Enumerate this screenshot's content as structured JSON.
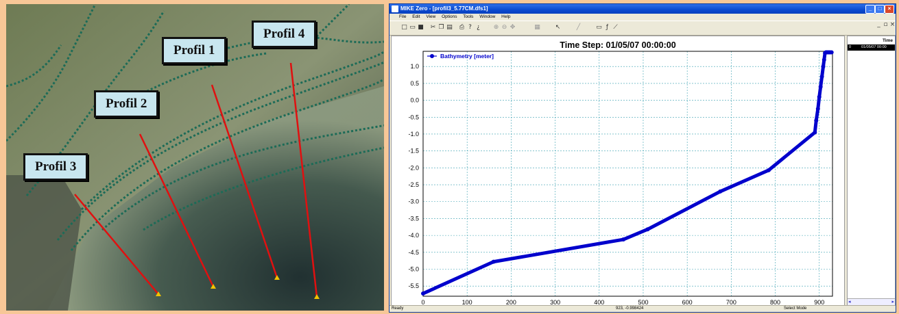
{
  "map": {
    "labels": [
      "Profil 1",
      "Profil 2",
      "Profil 3",
      "Profil 4"
    ]
  },
  "window": {
    "title": "MIKE Zero - [profil3_5.77CM.dfs1]",
    "menu": [
      "File",
      "Edit",
      "View",
      "Options",
      "Tools",
      "Window",
      "Help"
    ],
    "side_header": "Time",
    "side_row_index": "0",
    "side_row_value": "01/05/07 00:00",
    "status": {
      "left": "Ready",
      "middle": "923, -0.998424",
      "right": "Select Mode"
    }
  },
  "chart_data": {
    "type": "line",
    "title": "Time Step: 01/05/07 00:00:00",
    "xlabel": "",
    "ylabel": "",
    "xlim": [
      0,
      930
    ],
    "ylim": [
      -5.8,
      1.45
    ],
    "xticks": [
      0,
      100,
      200,
      300,
      400,
      500,
      600,
      700,
      800,
      900
    ],
    "yticks": [
      1.0,
      0.5,
      0.0,
      -0.5,
      -1.0,
      -1.5,
      -2.0,
      -2.5,
      -3.0,
      -3.5,
      -4.0,
      -4.5,
      -5.0,
      -5.5
    ],
    "grid": true,
    "legend": "top-left",
    "color": "#0000cc",
    "series": [
      {
        "name": "Bathymetry [meter]",
        "x": [
          0,
          160,
          455,
          510,
          675,
          785,
          890,
          893,
          897,
          900,
          903,
          906,
          909,
          911,
          913,
          915,
          917,
          919,
          921,
          923,
          925,
          928
        ],
        "y": [
          -5.72,
          -4.78,
          -4.12,
          -3.82,
          -2.7,
          -2.07,
          -0.95,
          -0.6,
          -0.25,
          0.1,
          0.4,
          0.7,
          1.0,
          1.2,
          1.4,
          1.42,
          1.42,
          1.42,
          1.42,
          1.42,
          1.42,
          1.42
        ]
      }
    ]
  }
}
